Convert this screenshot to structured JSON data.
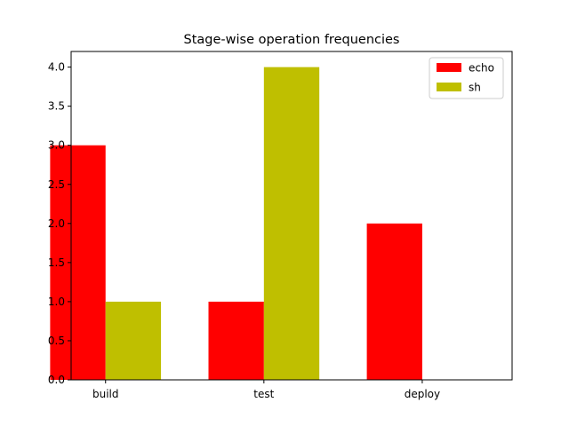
{
  "chart_data": {
    "type": "bar",
    "title": "Stage-wise operation frequencies",
    "xlabel": "",
    "ylabel": "",
    "categories": [
      "build",
      "test",
      "deploy"
    ],
    "series": [
      {
        "name": "echo",
        "color": "#ff0000",
        "values": [
          3,
          1,
          2
        ]
      },
      {
        "name": "sh",
        "color": "#bfbf00",
        "values": [
          1,
          4,
          0
        ]
      }
    ],
    "ylim": [
      0,
      4.2
    ],
    "yticks": [
      "0.0",
      "0.5",
      "1.0",
      "1.5",
      "2.0",
      "2.5",
      "3.0",
      "3.5",
      "4.0"
    ],
    "grid": false,
    "legend_position": "top-right"
  }
}
